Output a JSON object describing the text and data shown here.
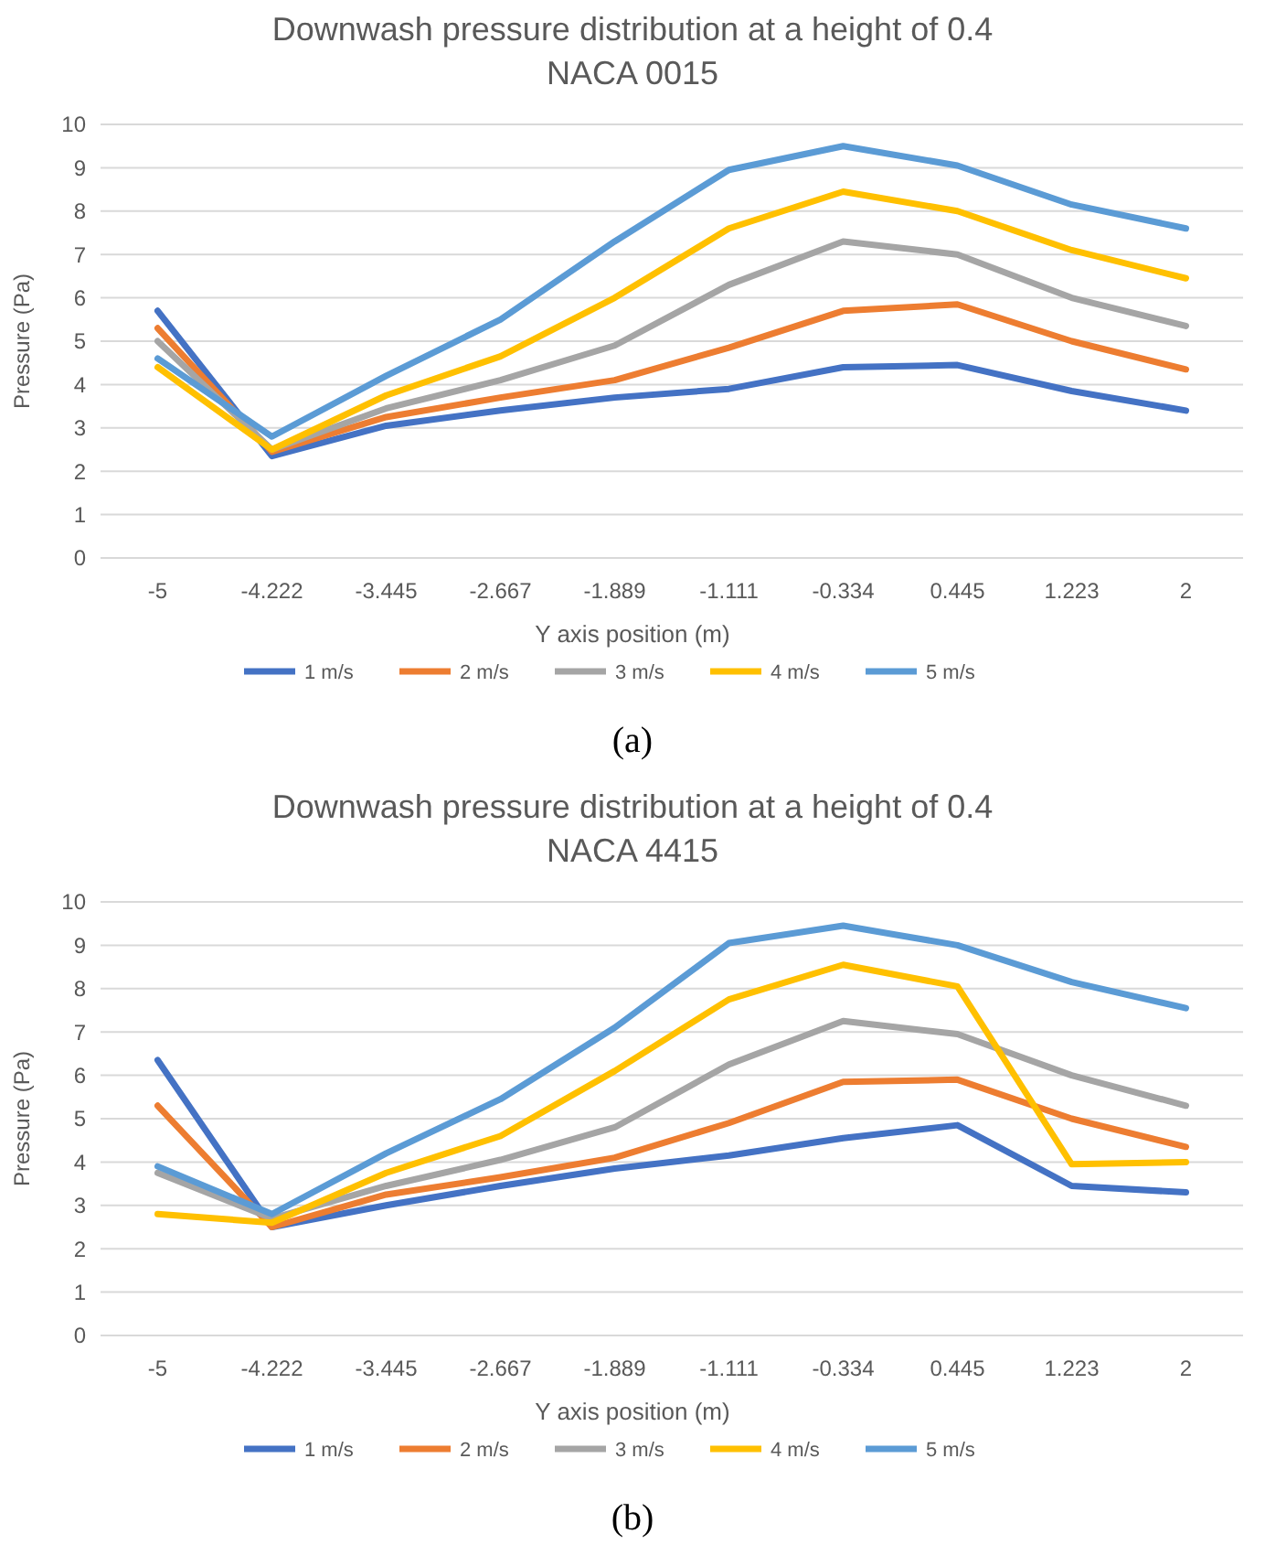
{
  "chart_data": [
    {
      "type": "line",
      "title": "Downwash pressure distribution at a height of 0.4",
      "subtitle": "NACA 0015",
      "xlabel": "Y axis position (m)",
      "ylabel": "Pressure (Pa)",
      "categories": [
        "-5",
        "-4.222",
        "-3.445",
        "-2.667",
        "-1.889",
        "-1.111",
        "-0.334",
        "0.445",
        "1.223",
        "2"
      ],
      "ylim": [
        0,
        10
      ],
      "yticks": [
        0,
        1,
        2,
        3,
        4,
        5,
        6,
        7,
        8,
        9,
        10
      ],
      "grid": "y",
      "legend": "bottom",
      "marker": "none",
      "line_style": "solid",
      "annotations": [
        "(a)"
      ],
      "series": [
        {
          "name": "1 m/s",
          "color": "#4472c4",
          "values": [
            5.7,
            2.35,
            3.05,
            3.4,
            3.7,
            3.9,
            4.4,
            4.45,
            3.85,
            3.4
          ]
        },
        {
          "name": "2 m/s",
          "color": "#ed7d31",
          "values": [
            5.3,
            2.45,
            3.25,
            3.7,
            4.1,
            4.85,
            5.7,
            5.85,
            5.0,
            4.35
          ]
        },
        {
          "name": "3 m/s",
          "color": "#a5a5a5",
          "values": [
            5.0,
            2.5,
            3.45,
            4.1,
            4.9,
            6.3,
            7.3,
            7.0,
            6.0,
            5.35
          ]
        },
        {
          "name": "4 m/s",
          "color": "#ffc000",
          "values": [
            4.4,
            2.5,
            3.75,
            4.65,
            6.0,
            7.6,
            8.45,
            8.0,
            7.1,
            6.45
          ]
        },
        {
          "name": "5 m/s",
          "color": "#5b9bd5",
          "values": [
            4.6,
            2.8,
            4.2,
            5.5,
            7.3,
            8.95,
            9.5,
            9.05,
            8.15,
            7.6
          ]
        }
      ]
    },
    {
      "type": "line",
      "title": "Downwash pressure distribution at a height of 0.4",
      "subtitle": "NACA 4415",
      "xlabel": "Y axis position (m)",
      "ylabel": "Pressure (Pa)",
      "categories": [
        "-5",
        "-4.222",
        "-3.445",
        "-2.667",
        "-1.889",
        "-1.111",
        "-0.334",
        "0.445",
        "1.223",
        "2"
      ],
      "ylim": [
        0,
        10
      ],
      "yticks": [
        0,
        1,
        2,
        3,
        4,
        5,
        6,
        7,
        8,
        9,
        10
      ],
      "grid": "y",
      "legend": "bottom",
      "marker": "none",
      "line_style": "solid",
      "annotations": [
        "(b)"
      ],
      "series": [
        {
          "name": "1 m/s",
          "color": "#4472c4",
          "values": [
            6.35,
            2.5,
            3.0,
            3.45,
            3.85,
            4.15,
            4.55,
            4.85,
            3.45,
            3.3
          ]
        },
        {
          "name": "2 m/s",
          "color": "#ed7d31",
          "values": [
            5.3,
            2.5,
            3.25,
            3.65,
            4.1,
            4.9,
            5.85,
            5.9,
            5.0,
            4.35
          ]
        },
        {
          "name": "3 m/s",
          "color": "#a5a5a5",
          "values": [
            3.75,
            2.7,
            3.45,
            4.05,
            4.8,
            6.25,
            7.25,
            6.95,
            6.0,
            5.3
          ]
        },
        {
          "name": "4 m/s",
          "color": "#ffc000",
          "values": [
            2.8,
            2.6,
            3.75,
            4.6,
            6.1,
            7.75,
            8.55,
            8.05,
            3.95,
            4.0
          ]
        },
        {
          "name": "5 m/s",
          "color": "#5b9bd5",
          "values": [
            3.9,
            2.8,
            4.2,
            5.45,
            7.1,
            9.05,
            9.45,
            9.0,
            8.15,
            7.55
          ]
        }
      ]
    }
  ]
}
